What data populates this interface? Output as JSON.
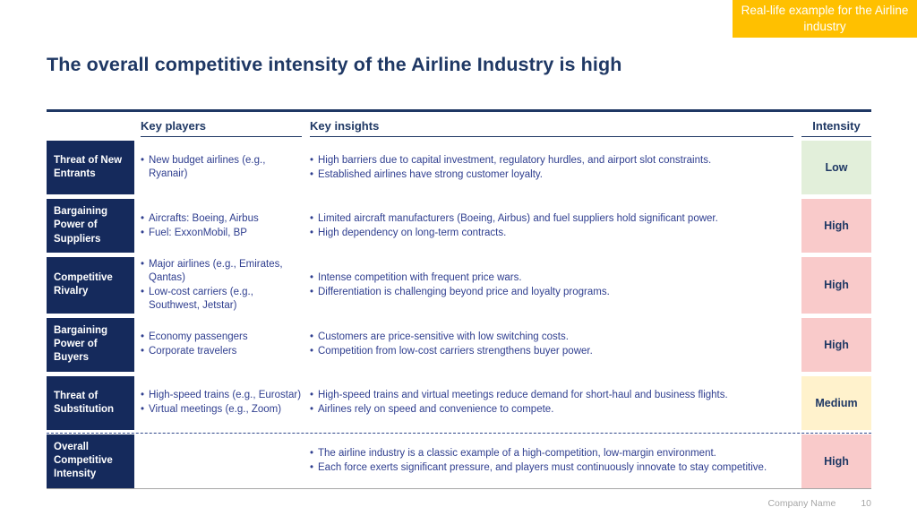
{
  "badge": {
    "text": "Real-life example for the Airline industry",
    "color": "#ffc000"
  },
  "title": "The overall competitive intensity of the Airline Industry is high",
  "table": {
    "headers": {
      "key_players": "Key players",
      "key_insights": "Key insights",
      "intensity": "Intensity"
    },
    "rows": [
      {
        "label": "Threat of New Entrants",
        "players": [
          "New budget airlines (e.g., Ryanair)"
        ],
        "insights": [
          "High barriers due to capital investment, regulatory hurdles, and airport slot constraints.",
          "Established airlines have strong customer loyalty."
        ],
        "intensity": "Low",
        "level": "low",
        "divider": false
      },
      {
        "label": "Bargaining Power of Suppliers",
        "players": [
          "Aircrafts: Boeing, Airbus",
          "Fuel: ExxonMobil, BP"
        ],
        "insights": [
          "Limited aircraft manufacturers (Boeing, Airbus) and fuel suppliers hold significant power.",
          "High dependency on long-term contracts."
        ],
        "intensity": "High",
        "level": "high",
        "divider": false
      },
      {
        "label": "Competitive Rivalry",
        "players": [
          "Major airlines (e.g., Emirates, Qantas)",
          "Low-cost carriers (e.g., Southwest, Jetstar)"
        ],
        "insights": [
          "Intense competition with frequent price wars.",
          "Differentiation is challenging beyond price and loyalty programs."
        ],
        "intensity": "High",
        "level": "high",
        "divider": false
      },
      {
        "label": "Bargaining Power of Buyers",
        "players": [
          "Economy passengers",
          "Corporate travelers"
        ],
        "insights": [
          "Customers are price-sensitive with low switching costs.",
          "Competition from low-cost carriers strengthens buyer power."
        ],
        "intensity": "High",
        "level": "high",
        "divider": false
      },
      {
        "label": "Threat of Substitution",
        "players": [
          "High-speed trains (e.g., Eurostar)",
          "Virtual meetings (e.g., Zoom)"
        ],
        "insights": [
          "High-speed trains and virtual meetings reduce demand for short-haul and business flights.",
          "Airlines rely on speed and convenience to compete."
        ],
        "intensity": "Medium",
        "level": "medium",
        "divider": false
      },
      {
        "label": "Overall Competitive Intensity",
        "players": [],
        "insights": [
          "The airline industry is a classic example of a high-competition, low-margin environment.",
          "Each force exerts significant pressure, and players must continuously innovate to stay competitive."
        ],
        "intensity": "High",
        "level": "high",
        "divider": true
      }
    ]
  },
  "footer": {
    "company": "Company Name",
    "page": "10"
  },
  "colors": {
    "navy": "#1f3864",
    "body_text": "#2f3e8f",
    "badge_orange": "#ffc000",
    "intensity_low": "#e2efda",
    "intensity_high": "#f9caca",
    "intensity_medium": "#fff2cc",
    "footer_gray": "#a6a6a6"
  }
}
